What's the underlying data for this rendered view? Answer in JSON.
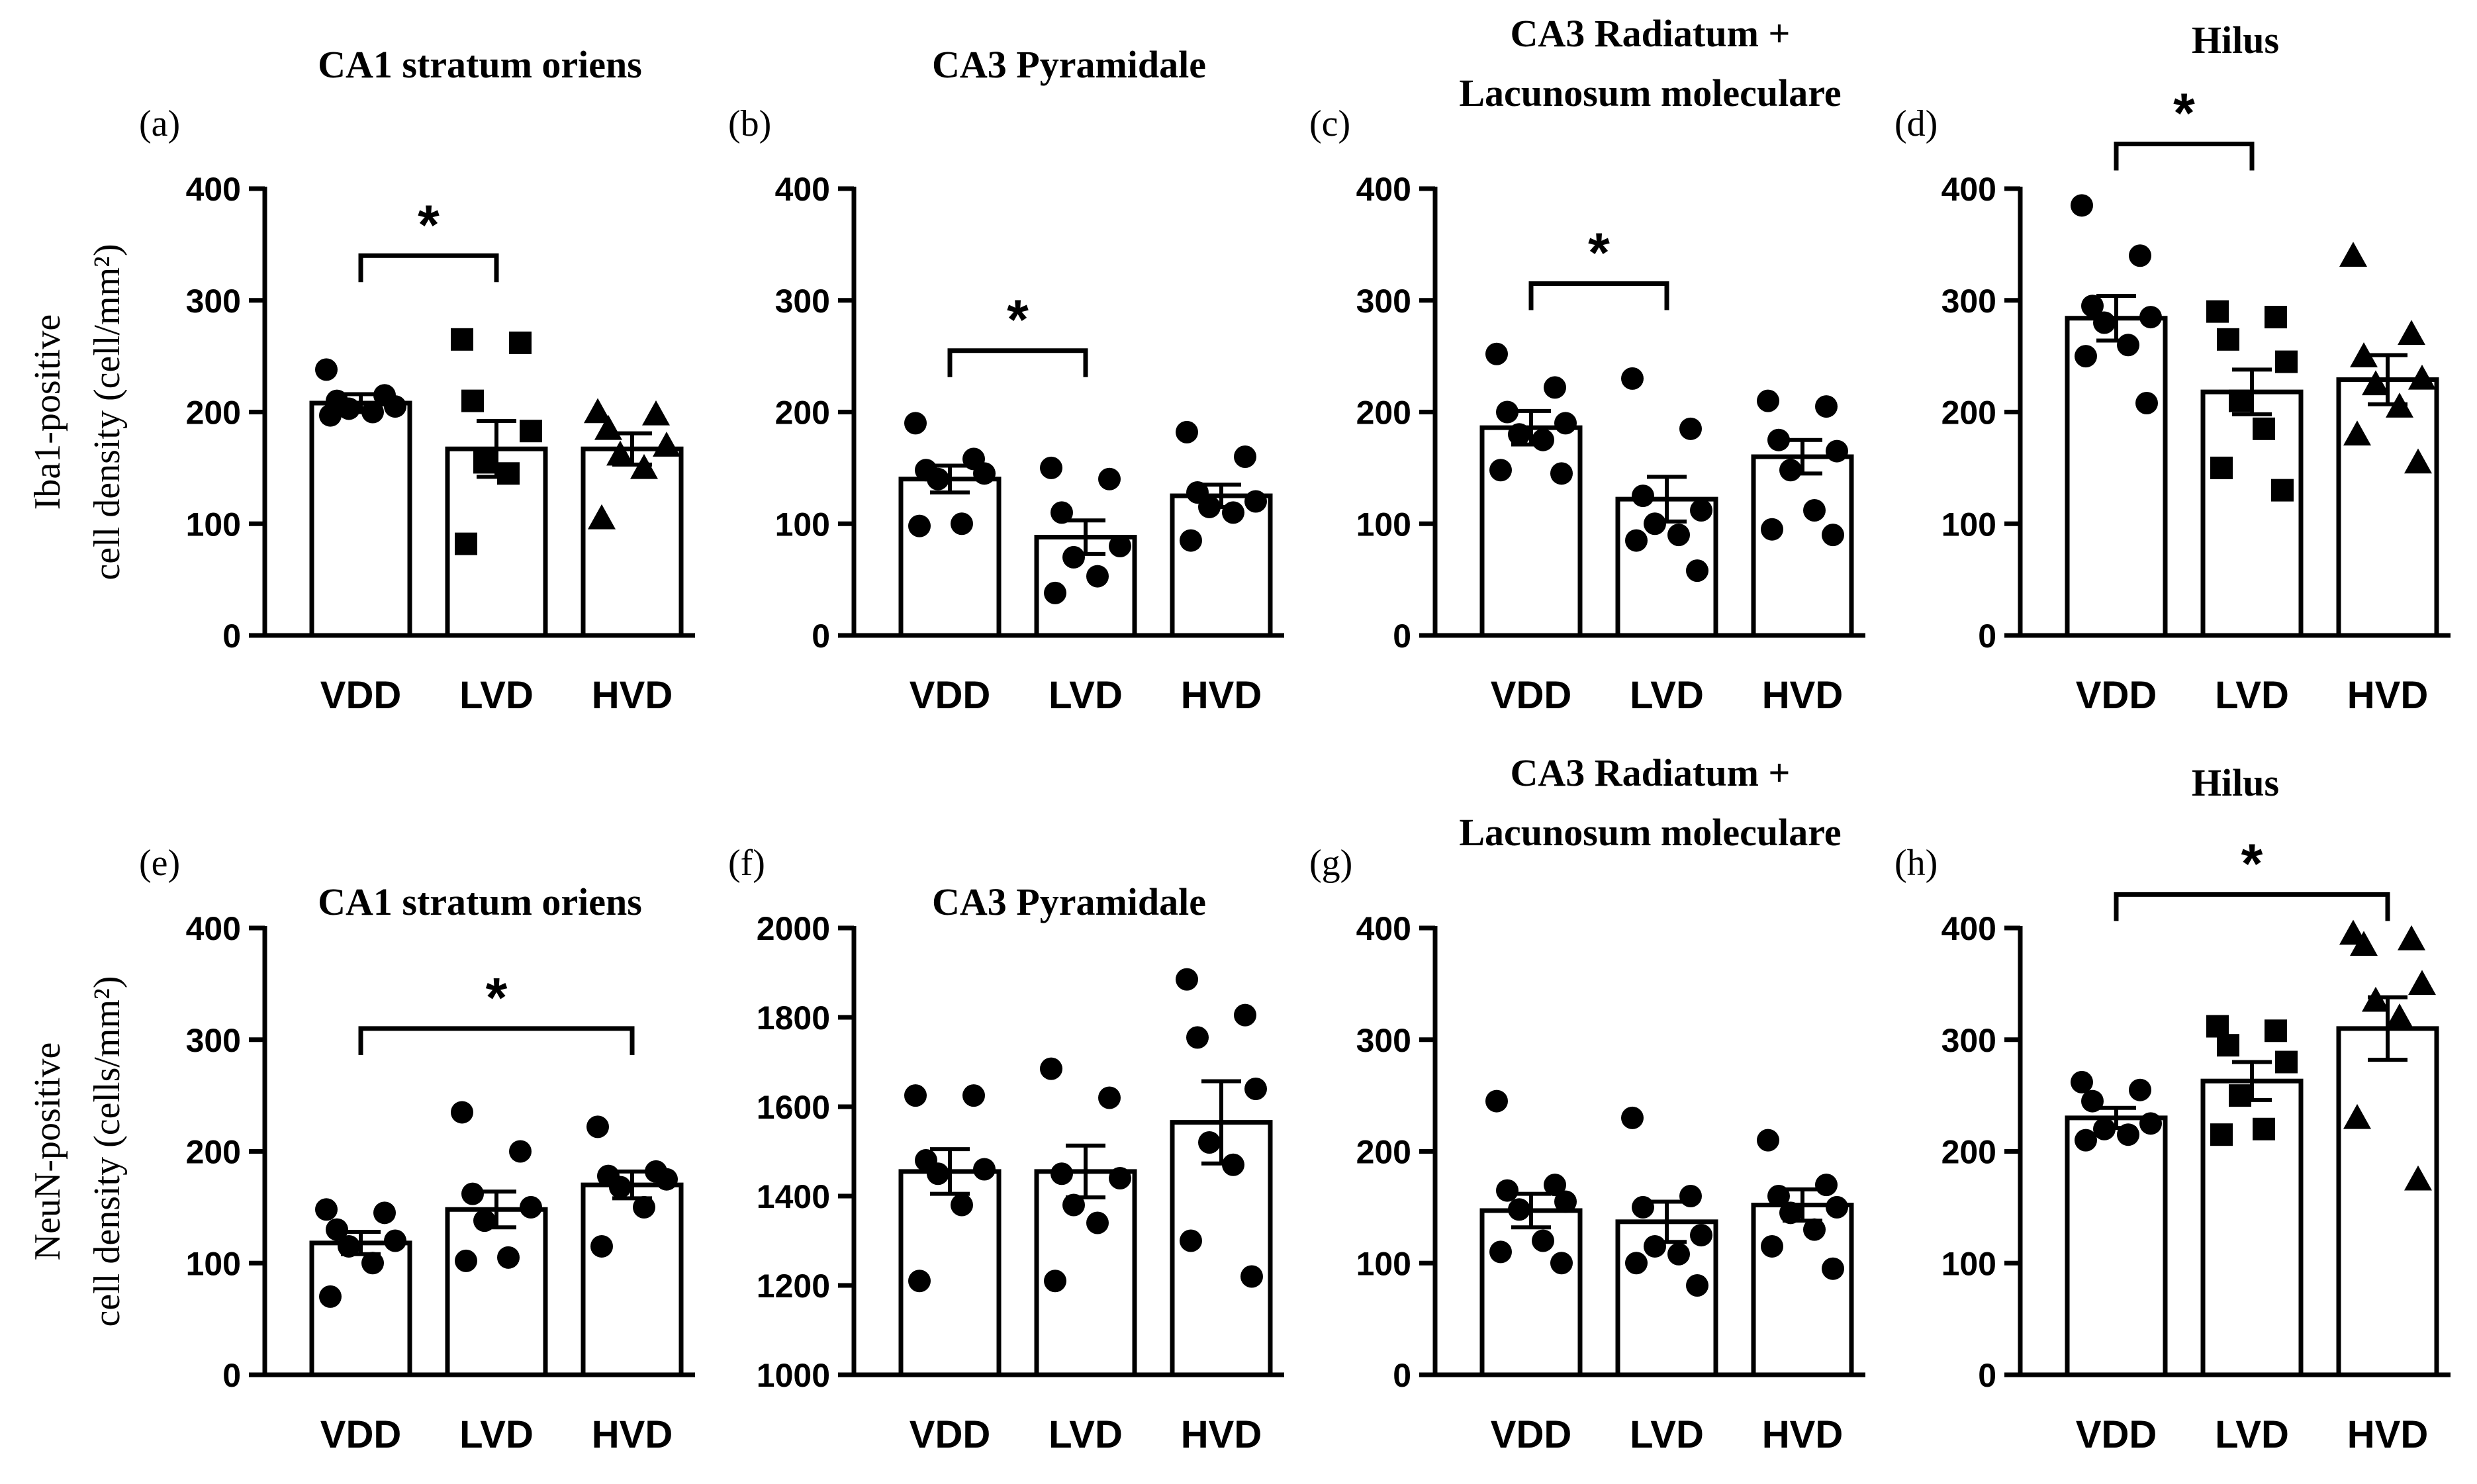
{
  "chart_data": [
    {
      "id": "a",
      "row": 0,
      "col": 0,
      "type": "bar",
      "panel_letter": "(a)",
      "title_lines": [
        "CA1 stratum oriens"
      ],
      "ylabel_lines": [
        "Iba1-positive",
        "cell density (cell/mm²)"
      ],
      "categories": [
        "VDD",
        "LVD",
        "HVD"
      ],
      "ylim": [
        0,
        400
      ],
      "yticks": [
        0,
        100,
        200,
        300,
        400
      ],
      "yticklabels": [
        "0",
        "100",
        "200",
        "300",
        "400"
      ],
      "means": [
        208,
        167,
        167
      ],
      "sem": [
        8,
        25,
        14
      ],
      "markers": [
        "circle",
        "square",
        "triangle"
      ],
      "points": [
        [
          238,
          215,
          210,
          205,
          203,
          200,
          197
        ],
        [
          265,
          262,
          210,
          183,
          155,
          145,
          82
        ],
        [
          200,
          198,
          185,
          170,
          162,
          150,
          105
        ]
      ],
      "significance": [
        {
          "from": 0,
          "to": 1,
          "label": "*",
          "y": 340
        }
      ]
    },
    {
      "id": "b",
      "row": 0,
      "col": 1,
      "type": "bar",
      "panel_letter": "(b)",
      "title_lines": [
        "CA3 Pyramidale"
      ],
      "categories": [
        "VDD",
        "LVD",
        "HVD"
      ],
      "ylim": [
        0,
        400
      ],
      "yticks": [
        0,
        100,
        200,
        300,
        400
      ],
      "yticklabels": [
        "0",
        "100",
        "200",
        "300",
        "400"
      ],
      "means": [
        140,
        88,
        125
      ],
      "sem": [
        12,
        15,
        10
      ],
      "markers": [
        "circle",
        "circle",
        "circle"
      ],
      "points": [
        [
          190,
          158,
          148,
          145,
          140,
          100,
          98
        ],
        [
          150,
          140,
          110,
          80,
          70,
          53,
          38
        ],
        [
          182,
          160,
          128,
          120,
          115,
          110,
          85
        ]
      ],
      "significance": [
        {
          "from": 0,
          "to": 1,
          "label": "*",
          "y": 255
        }
      ]
    },
    {
      "id": "c",
      "row": 0,
      "col": 2,
      "type": "bar",
      "panel_letter": "(c)",
      "title_lines": [
        "CA3 Radiatum +",
        "Lacunosum moleculare"
      ],
      "categories": [
        "VDD",
        "LVD",
        "HVD"
      ],
      "ylim": [
        0,
        400
      ],
      "yticks": [
        0,
        100,
        200,
        300,
        400
      ],
      "yticklabels": [
        "0",
        "100",
        "200",
        "300",
        "400"
      ],
      "means": [
        186,
        122,
        160
      ],
      "sem": [
        15,
        20,
        15
      ],
      "markers": [
        "circle",
        "circle",
        "circle"
      ],
      "points": [
        [
          252,
          222,
          200,
          190,
          180,
          175,
          148,
          145
        ],
        [
          230,
          185,
          125,
          112,
          100,
          90,
          85,
          58
        ],
        [
          210,
          205,
          175,
          165,
          148,
          112,
          95,
          90
        ]
      ],
      "significance": [
        {
          "from": 0,
          "to": 1,
          "label": "*",
          "y": 315
        }
      ]
    },
    {
      "id": "d",
      "row": 0,
      "col": 3,
      "type": "bar",
      "panel_letter": "(d)",
      "title_lines": [
        "Hilus"
      ],
      "categories": [
        "VDD",
        "LVD",
        "HVD"
      ],
      "ylim": [
        0,
        400
      ],
      "yticks": [
        0,
        100,
        200,
        300,
        400
      ],
      "yticklabels": [
        "0",
        "100",
        "200",
        "300",
        "400"
      ],
      "means": [
        284,
        218,
        229
      ],
      "sem": [
        20,
        20,
        22
      ],
      "markers": [
        "circle",
        "square",
        "triangle"
      ],
      "points": [
        [
          385,
          340,
          295,
          285,
          280,
          260,
          250,
          208
        ],
        [
          290,
          285,
          265,
          245,
          210,
          185,
          150,
          130
        ],
        [
          340,
          270,
          250,
          230,
          225,
          205,
          180,
          155
        ]
      ],
      "significance": [
        {
          "from": 0,
          "to": 1,
          "label": "*",
          "y": 440
        }
      ]
    },
    {
      "id": "e",
      "row": 1,
      "col": 0,
      "type": "bar",
      "panel_letter": "(e)",
      "title_lines": [
        "CA1 stratum oriens"
      ],
      "ylabel_lines": [
        "NeuN-positive",
        "cell density (cells/mm²)"
      ],
      "categories": [
        "VDD",
        "LVD",
        "HVD"
      ],
      "ylim": [
        0,
        400
      ],
      "yticks": [
        0,
        100,
        200,
        300,
        400
      ],
      "yticklabels": [
        "0",
        "100",
        "200",
        "300",
        "400"
      ],
      "means": [
        118,
        148,
        170
      ],
      "sem": [
        10,
        16,
        12
      ],
      "markers": [
        "circle",
        "circle",
        "circle"
      ],
      "points": [
        [
          148,
          145,
          130,
          120,
          115,
          100,
          70
        ],
        [
          235,
          200,
          162,
          150,
          138,
          105,
          102
        ],
        [
          222,
          182,
          178,
          175,
          168,
          150,
          115
        ]
      ],
      "significance": [
        {
          "from": 0,
          "to": 2,
          "label": "*",
          "y": 310
        }
      ]
    },
    {
      "id": "f",
      "row": 1,
      "col": 1,
      "type": "bar",
      "panel_letter": "(f)",
      "title_lines": [
        "CA3 Pyramidale"
      ],
      "categories": [
        "VDD",
        "LVD",
        "HVD"
      ],
      "ylim": [
        1000,
        2000
      ],
      "yticks": [
        1000,
        1200,
        1400,
        1600,
        1800,
        2000
      ],
      "yticklabels": [
        "1000",
        "1200",
        "1400",
        "1600",
        "1800",
        "2000"
      ],
      "means": [
        1455,
        1455,
        1565
      ],
      "sem": [
        50,
        58,
        92
      ],
      "markers": [
        "circle",
        "circle",
        "circle"
      ],
      "points": [
        [
          1625,
          1625,
          1480,
          1460,
          1450,
          1380,
          1210
        ],
        [
          1685,
          1620,
          1450,
          1440,
          1380,
          1340,
          1210
        ],
        [
          1885,
          1805,
          1755,
          1640,
          1520,
          1470,
          1300,
          1220
        ]
      ],
      "significance": []
    },
    {
      "id": "g",
      "row": 1,
      "col": 2,
      "type": "bar",
      "panel_letter": "(g)",
      "title_lines": [
        "CA3 Radiatum +",
        "Lacunosum moleculare"
      ],
      "categories": [
        "VDD",
        "LVD",
        "HVD"
      ],
      "ylim": [
        0,
        400
      ],
      "yticks": [
        0,
        100,
        200,
        300,
        400
      ],
      "yticklabels": [
        "0",
        "100",
        "200",
        "300",
        "400"
      ],
      "means": [
        147,
        137,
        152
      ],
      "sem": [
        15,
        18,
        14
      ],
      "markers": [
        "circle",
        "circle",
        "circle"
      ],
      "points": [
        [
          245,
          170,
          165,
          155,
          148,
          120,
          110,
          100
        ],
        [
          230,
          160,
          150,
          125,
          115,
          108,
          100,
          80
        ],
        [
          210,
          170,
          160,
          150,
          145,
          130,
          115,
          95
        ]
      ],
      "significance": []
    },
    {
      "id": "h",
      "row": 1,
      "col": 3,
      "type": "bar",
      "panel_letter": "(h)",
      "title_lines": [
        "Hilus"
      ],
      "categories": [
        "VDD",
        "LVD",
        "HVD"
      ],
      "ylim": [
        0,
        400
      ],
      "yticks": [
        0,
        100,
        200,
        300,
        400
      ],
      "yticklabels": [
        "0",
        "100",
        "200",
        "300",
        "400"
      ],
      "means": [
        230,
        263,
        310
      ],
      "sem": [
        9,
        17,
        28
      ],
      "markers": [
        "circle",
        "square",
        "triangle"
      ],
      "points": [
        [
          262,
          255,
          245,
          225,
          220,
          215,
          210
        ],
        [
          312,
          308,
          295,
          280,
          250,
          220,
          215
        ],
        [
          395,
          390,
          385,
          350,
          335,
          320,
          230,
          175
        ]
      ],
      "significance": [
        {
          "from": 0,
          "to": 2,
          "label": "*",
          "y": 430
        }
      ]
    }
  ]
}
